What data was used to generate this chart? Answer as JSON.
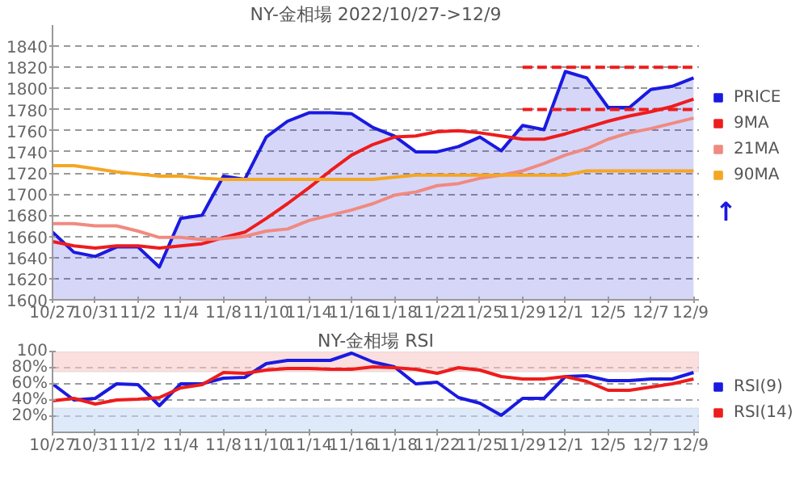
{
  "chart_data": [
    {
      "type": "line",
      "title": "NY-金相場 2022/10/27->12/9",
      "categories": [
        "10/27",
        null,
        "10/31",
        null,
        "11/2",
        null,
        "11/4",
        null,
        "11/8",
        null,
        "11/10",
        null,
        "11/14",
        null,
        "11/16",
        null,
        "11/18",
        null,
        "11/22",
        null,
        "11/25",
        null,
        "11/29",
        null,
        "12/1",
        null,
        "12/5",
        null,
        "12/7",
        null,
        "12/9"
      ],
      "ylim": [
        1600,
        1860
      ],
      "yticks": [
        1600,
        1620,
        1640,
        1660,
        1680,
        1700,
        1720,
        1740,
        1760,
        1780,
        1800,
        1820,
        1840
      ],
      "grid": "y",
      "legend": "right",
      "annotations": [
        "↑"
      ],
      "series": [
        {
          "name": "PRICE",
          "type": "area",
          "color": "#1a1ae0",
          "values": [
            1664,
            1645,
            1641,
            1650,
            1650,
            1631,
            1677,
            1680,
            1717,
            1714,
            1754,
            1769,
            1777,
            1777,
            1776,
            1763,
            1755,
            1740,
            1740,
            1745,
            1754,
            1741,
            1765,
            1761,
            1816,
            1810,
            1782,
            1782,
            1799,
            1802,
            1810
          ]
        },
        {
          "name": "9MA",
          "color": "#ee1c1c",
          "values": [
            1655,
            1651,
            1649,
            1651,
            1651,
            1649,
            1651,
            1653,
            1659,
            1664,
            1677,
            1691,
            1706,
            1722,
            1737,
            1747,
            1754,
            1755,
            1759,
            1760,
            1758,
            1755,
            1752,
            1752,
            1757,
            1763,
            1769,
            1774,
            1778,
            1783,
            1790
          ]
        },
        {
          "name": "21MA",
          "color": "#f08a80",
          "values": [
            1672,
            1672,
            1670,
            1670,
            1665,
            1659,
            1659,
            1657,
            1658,
            1660,
            1665,
            1667,
            1675,
            1680,
            1685,
            1691,
            1699,
            1702,
            1708,
            1710,
            1715,
            1718,
            1722,
            1729,
            1737,
            1743,
            1752,
            1758,
            1762,
            1767,
            1772
          ]
        },
        {
          "name": "90MA",
          "color": "#f5a623",
          "values": [
            1727,
            1727,
            1724,
            1721,
            1719,
            1717,
            1717,
            1715,
            1714,
            1714,
            1714,
            1714,
            1714,
            1714,
            1714,
            1714,
            1716,
            1718,
            1718,
            1718,
            1718,
            1718,
            1718,
            1718,
            1718,
            1722,
            1722,
            1722,
            1722,
            1722,
            1722
          ]
        },
        {
          "type": "line",
          "color": "#ee1c1c",
          "line_style": "dashed",
          "values": [
            null,
            null,
            null,
            null,
            null,
            null,
            null,
            null,
            null,
            null,
            null,
            null,
            null,
            null,
            null,
            null,
            null,
            null,
            null,
            null,
            null,
            null,
            1820,
            1820,
            1820,
            1820,
            1820,
            1820,
            1820,
            1820,
            1820
          ]
        },
        {
          "type": "line",
          "color": "#ee1c1c",
          "line_style": "dashed",
          "values": [
            null,
            null,
            null,
            null,
            null,
            null,
            null,
            null,
            null,
            null,
            null,
            null,
            null,
            null,
            null,
            null,
            null,
            null,
            null,
            null,
            null,
            null,
            1780,
            1780,
            1780,
            1780,
            1780,
            1780,
            1780,
            1780,
            1780
          ]
        }
      ]
    },
    {
      "type": "line",
      "title": "NY-金相場 RSI",
      "categories": [
        "10/27",
        null,
        "10/31",
        null,
        "11/2",
        null,
        "11/4",
        null,
        "11/8",
        null,
        "11/10",
        null,
        "11/14",
        null,
        "11/16",
        null,
        "11/18",
        null,
        "11/22",
        null,
        "11/25",
        null,
        "11/29",
        null,
        "12/1",
        null,
        "12/5",
        null,
        "12/7",
        null,
        "12/9"
      ],
      "ylim": [
        0,
        100
      ],
      "yticks": [
        {
          "value": 20,
          "label": "20%"
        },
        {
          "value": 40,
          "label": "40%"
        },
        {
          "value": 60,
          "label": "60%"
        },
        {
          "value": 80,
          "label": "80%"
        },
        100
      ],
      "grid": "y",
      "legend": "right",
      "bands": [
        {
          "axis": "y",
          "from": 75,
          "to": 100,
          "color": "#f8c8c8"
        },
        {
          "axis": "y",
          "from": 0,
          "to": 30,
          "color": "#c8dcf5"
        }
      ],
      "series": [
        {
          "name": "RSI(9)",
          "color": "#1a1ae0",
          "values": [
            60,
            40,
            42,
            60,
            59,
            33,
            60,
            60,
            67,
            68,
            85,
            89,
            89,
            89,
            98,
            87,
            81,
            60,
            62,
            43,
            36,
            21,
            42,
            42,
            69,
            70,
            64,
            64,
            66,
            66,
            74
          ]
        },
        {
          "name": "RSI(14)",
          "color": "#ee1c1c",
          "values": [
            39,
            42,
            35,
            40,
            41,
            43,
            55,
            59,
            74,
            73,
            77,
            79,
            79,
            78,
            78,
            81,
            80,
            78,
            73,
            80,
            77,
            69,
            66,
            66,
            69,
            63,
            52,
            52,
            56,
            60,
            66
          ]
        }
      ]
    }
  ]
}
